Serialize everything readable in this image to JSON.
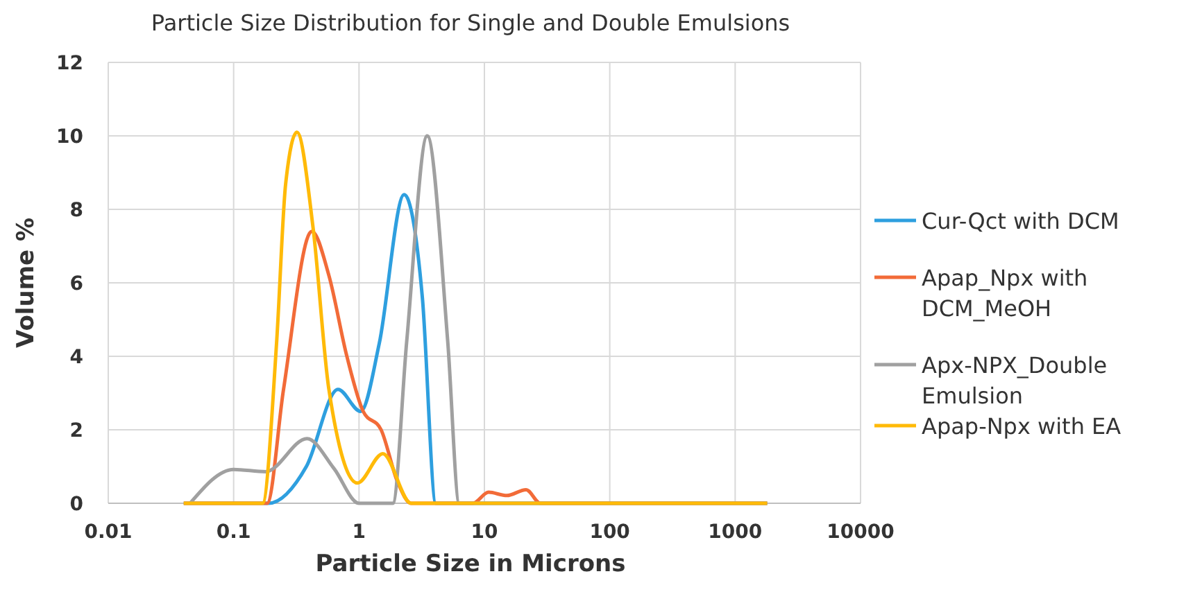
{
  "chart_data": {
    "type": "line",
    "title": "Particle Size Distribution for Single and Double Emulsions",
    "xlabel": "Particle  Size in Microns",
    "ylabel": "Volume %",
    "log": "x",
    "xlim": [
      0.01,
      10000
    ],
    "xticks": [
      0.01,
      0.1,
      1,
      10,
      100,
      1000,
      10000
    ],
    "ylim": [
      0,
      12
    ],
    "yticks": [
      0,
      2,
      4,
      6,
      8,
      10,
      12
    ],
    "grid": true,
    "legend": "right",
    "marker": "none",
    "line_style": "solid",
    "series": [
      {
        "name": "Cur-Qct with DCM",
        "color": "#2e9fdf",
        "x": [
          0.04,
          0.19,
          0.38,
          0.68,
          1.03,
          1.45,
          2.29,
          3.2,
          4.1,
          1800
        ],
        "values": [
          0,
          0,
          1.0,
          3.1,
          2.5,
          4.35,
          8.4,
          5.6,
          0,
          0
        ]
      },
      {
        "name": "Apap_Npx with DCM_MeOH",
        "color": "#f26b38",
        "x": [
          0.04,
          0.185,
          0.25,
          0.42,
          0.575,
          0.8,
          1.08,
          1.5,
          2.02,
          2.6,
          8.1,
          10.8,
          15.1,
          21.5,
          28,
          1800
        ],
        "values": [
          0,
          0,
          3.1,
          7.4,
          6.2,
          4.0,
          2.5,
          2.0,
          0.6,
          0,
          0,
          0.3,
          0.21,
          0.37,
          0,
          0
        ]
      },
      {
        "name": "Apx-NPX_Double Emulsion",
        "color": "#a0a0a0",
        "x": [
          0.045,
          0.1,
          0.18,
          0.385,
          0.63,
          1.0,
          1.86,
          2.4,
          3.5,
          5.1,
          6.3,
          1800
        ],
        "values": [
          0,
          0.92,
          0.86,
          1.76,
          0.95,
          0,
          0,
          4.4,
          10,
          4.4,
          0,
          0
        ]
      },
      {
        "name": "Apap-Npx with EA",
        "color": "#ffba08",
        "x": [
          0.04,
          0.17,
          0.22,
          0.26,
          0.32,
          0.43,
          0.575,
          0.97,
          1.55,
          2.6,
          1800
        ],
        "values": [
          0,
          0,
          4.36,
          8.7,
          10.1,
          7.5,
          3.1,
          0.55,
          1.35,
          0,
          0
        ]
      }
    ]
  }
}
